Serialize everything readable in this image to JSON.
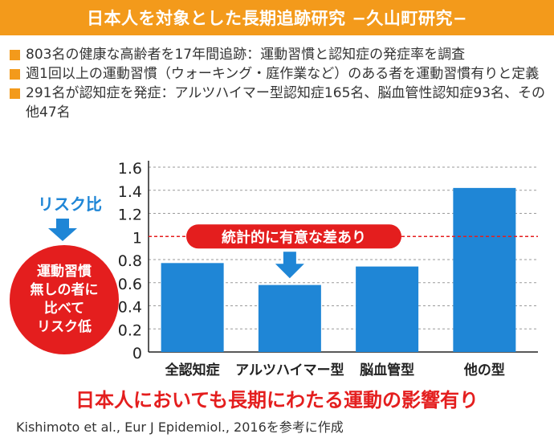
{
  "header": {
    "title": "日本人を対象とした長期追跡研究 −久山町研究−"
  },
  "bullets": [
    "803名の健康な高齢者を17年間追跡：運動習慣と認知症の発症率を調査",
    "週1回以上の運動習慣（ウォーキング・庭作業など）のある者を運動習慣有りと定義",
    "291名が認知症を発症：アルツハイマー型認知症165名、脳血管性認知症93名、その他47名"
  ],
  "side": {
    "risk_label": "リスク比",
    "circle_lines": [
      "運動習慣",
      "無しの者に",
      "比べて",
      "リスク低"
    ],
    "colors": {
      "blue": "#1f86d6",
      "red": "#e41e1e"
    }
  },
  "chart_data": {
    "type": "bar",
    "categories": [
      "全認知症",
      "アルツハイマー型",
      "脳血管型",
      "他の型"
    ],
    "values": [
      0.77,
      0.58,
      0.74,
      1.42
    ],
    "ylim": [
      0,
      1.6
    ],
    "yticks": [
      0,
      0.2,
      0.4,
      0.6,
      0.8,
      1,
      1.2,
      1.4,
      1.6
    ],
    "ytick_labels": [
      "0",
      "0.2",
      "0.4",
      "0.6",
      "0.8",
      "1",
      "1.2",
      "1.4",
      "1.6"
    ],
    "reference_line": 1,
    "annotation": "統計的に有意な差あり",
    "grid": true,
    "bar_color": "#1f86d6",
    "reference_color": "#e41e1e"
  },
  "footer": {
    "conclusion": "日本人においても長期にわたる運動の影響有り",
    "citation": "Kishimoto et al., Eur J Epidemiol., 2016を参考に作成"
  },
  "icons": {
    "risk_arrow": "arrow-down-icon",
    "annotation_arrow": "arrow-down-icon"
  }
}
